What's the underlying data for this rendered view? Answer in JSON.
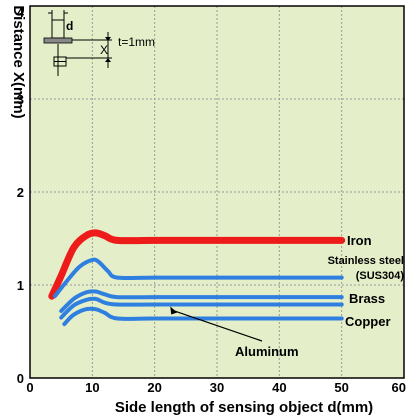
{
  "chart_data": {
    "type": "line",
    "xlabel": "Side length of sensing object d(mm)",
    "ylabel": "Distance X(mm)",
    "xlim": [
      0,
      60
    ],
    "ylim": [
      0,
      4
    ],
    "xticks": [
      "0",
      "10",
      "20",
      "30",
      "40",
      "50",
      "60"
    ],
    "yticks": [
      "0",
      "1",
      "2",
      "3",
      "4"
    ],
    "grid": true,
    "series": [
      {
        "name": "Iron",
        "color": "#ee1b1b",
        "x": [
          3.5,
          5,
          7,
          9,
          10.5,
          12,
          14,
          20,
          30,
          40,
          50
        ],
        "y": [
          0.88,
          1.1,
          1.4,
          1.53,
          1.56,
          1.53,
          1.48,
          1.48,
          1.48,
          1.48,
          1.48
        ]
      },
      {
        "name": "Stainless steel (SUS304)",
        "label_lines": [
          "Stainless steel",
          "(SUS304)"
        ],
        "color": "#2f7fe0",
        "x": [
          4,
          6,
          8,
          10,
          11,
          12.5,
          14,
          20,
          30,
          40,
          50
        ],
        "y": [
          0.88,
          1.05,
          1.2,
          1.27,
          1.25,
          1.15,
          1.08,
          1.08,
          1.08,
          1.08,
          1.08
        ]
      },
      {
        "name": "Brass",
        "color": "#2f7fe0",
        "x": [
          5,
          7,
          9,
          10.5,
          12,
          14,
          20,
          30,
          40,
          50
        ],
        "y": [
          0.72,
          0.85,
          0.92,
          0.93,
          0.9,
          0.87,
          0.87,
          0.87,
          0.87,
          0.87
        ]
      },
      {
        "name": "Aluminum",
        "color": "#2f7fe0",
        "x": [
          5,
          7,
          9,
          10.5,
          12,
          14,
          20,
          30,
          40,
          50
        ],
        "y": [
          0.65,
          0.78,
          0.84,
          0.85,
          0.81,
          0.79,
          0.79,
          0.79,
          0.79,
          0.79
        ]
      },
      {
        "name": "Copper",
        "color": "#2f7fe0",
        "x": [
          5.5,
          7,
          9,
          10.5,
          12,
          14,
          20,
          30,
          40,
          50
        ],
        "y": [
          0.58,
          0.68,
          0.74,
          0.74,
          0.7,
          0.64,
          0.64,
          0.64,
          0.64,
          0.64
        ]
      }
    ],
    "annotations": {
      "inset_d": "d",
      "inset_t": "t=1mm",
      "inset_x": "X"
    },
    "colors": {
      "plot_background": "#e4efc9",
      "grid": "#9a9a9a"
    }
  }
}
